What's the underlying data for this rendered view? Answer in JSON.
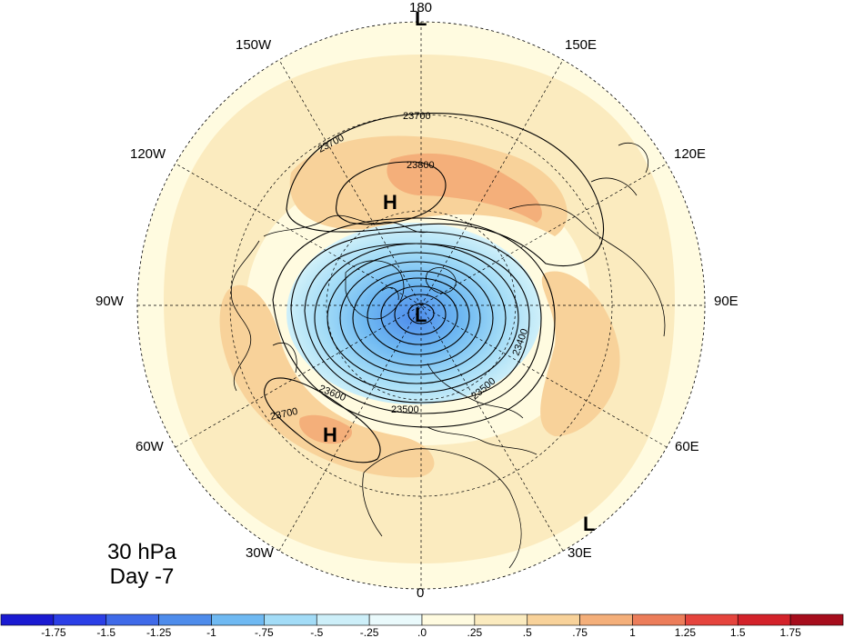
{
  "caption": {
    "level": "30 hPa",
    "day": "Day -7"
  },
  "longitude_labels": [
    "180",
    "150E",
    "120E",
    "90E",
    "60E",
    "30E",
    "0",
    "30W",
    "60W",
    "90W",
    "120W",
    "150W"
  ],
  "system_markers": [
    {
      "name": "high-north-pacific",
      "letter": "H"
    },
    {
      "name": "high-north-atlantic",
      "letter": "H"
    },
    {
      "name": "low-polar-vortex",
      "letter": "L"
    },
    {
      "name": "low-dateline",
      "letter": "L"
    },
    {
      "name": "low-africa-edge",
      "letter": "L"
    }
  ],
  "contour_labels": [
    "23700",
    "23800",
    "23700",
    "23700",
    "23600",
    "23500",
    "23500",
    "23400"
  ],
  "colorbar": {
    "tick_labels": [
      "-1.75",
      "-1.5",
      "-1.25",
      "-1",
      "-.75",
      "-.5",
      "-.25",
      ".0",
      ".25",
      ".5",
      ".75",
      "1",
      "1.25",
      "1.5",
      "1.75"
    ],
    "colors": [
      "#1a1ad1",
      "#2b3fe6",
      "#3f6ae8",
      "#4e8ceb",
      "#6fb9f2",
      "#a3dcf7",
      "#cdeff9",
      "#eafafc",
      "#fffbe0",
      "#fbebbf",
      "#f8d29a",
      "#f4af7a",
      "#ec7d5a",
      "#e5443d",
      "#d3222a",
      "#a60d1c"
    ]
  },
  "colors": {
    "background": "#ffffff",
    "positive_weak": "#fbebbf",
    "positive_moderate": "#f8d29a",
    "positive_strong": "#f4af7a",
    "negative_weak": "#cdeff9",
    "negative_moderate": "#6fb9f2",
    "negative_strong": "#4e8ceb"
  }
}
